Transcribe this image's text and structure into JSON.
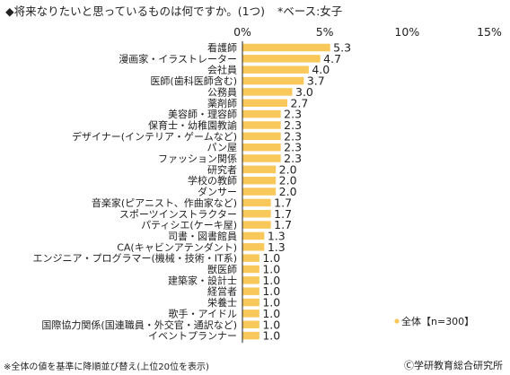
{
  "title": "◆将来なりたいと思っているものは何ですか。(1つ)",
  "subtitle": "*ベース:女子",
  "footnote": "※全体の値を基準に降順並び替え(上位20位を表示)",
  "copyright": "Ⓒ学研教育総合研究所",
  "colors": {
    "bar": "#f8c85a",
    "axis": "#222222"
  },
  "chart_data": {
    "type": "bar",
    "orientation": "horizontal",
    "categories": [
      "看護師",
      "漫画家・イラストレーター",
      "会社員",
      "医師(歯科医師含む)",
      "公務員",
      "薬剤師",
      "美容師・理容師",
      "保育士・幼稚園教諭",
      "デザイナー(インテリア・ゲームなど)",
      "パン屋",
      "ファッション関係",
      "研究者",
      "学校の教師",
      "ダンサー",
      "音楽家(ピアニスト、作曲家など)",
      "スポーツインストラクター",
      "パティシエ(ケーキ屋)",
      "司書・図書館員",
      "CA(キャビンアテンダント)",
      "エンジニア・プログラマー(機械・技術・IT系)",
      "獣医師",
      "建築家・設計士",
      "経営者",
      "栄養士",
      "歌手・アイドル",
      "国際協力関係(国連職員・外交官・通訳など)",
      "イベントプランナー"
    ],
    "series": [
      {
        "name": "全体【n=300】",
        "values": [
          5.3,
          4.7,
          4.0,
          3.7,
          3.0,
          2.7,
          2.3,
          2.3,
          2.3,
          2.3,
          2.3,
          2.0,
          2.0,
          2.0,
          1.7,
          1.7,
          1.7,
          1.3,
          1.3,
          1.0,
          1.0,
          1.0,
          1.0,
          1.0,
          1.0,
          1.0,
          1.0
        ]
      }
    ],
    "value_labels": [
      "5.3",
      "4.7",
      "4.0",
      "3.7",
      "3.0",
      "2.7",
      "2.3",
      "2.3",
      "2.3",
      "2.3",
      "2.3",
      "2.0",
      "2.0",
      "2.0",
      "1.7",
      "1.7",
      "1.7",
      "1.3",
      "1.3",
      "1.0",
      "1.0",
      "1.0",
      "1.0",
      "1.0",
      "1.0",
      "1.0",
      "1.0"
    ],
    "xlim": [
      0,
      15
    ],
    "xticks": [
      "0%",
      "5%",
      "10%",
      "15%"
    ],
    "legend_position": "bottom-right",
    "grid": false
  }
}
